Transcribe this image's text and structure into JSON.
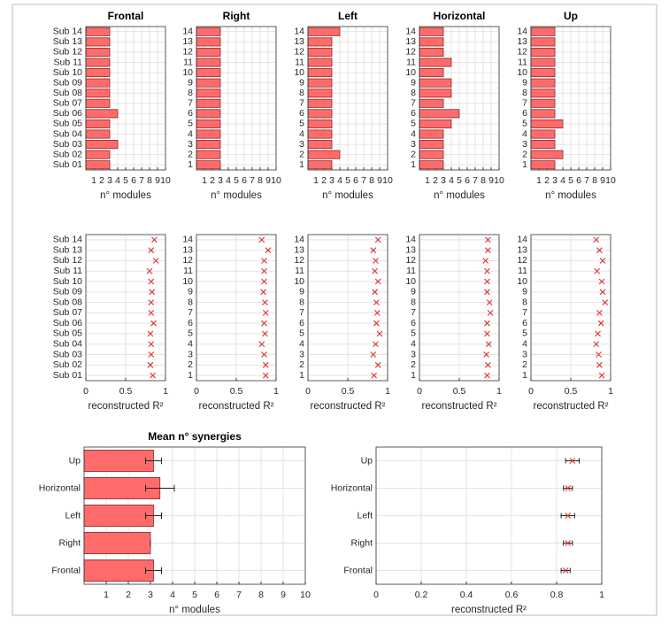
{
  "chart_data": [
    {
      "type": "bar",
      "title": "Frontal",
      "xlabel": "n° modules",
      "categories": [
        "Sub 01",
        "Sub 02",
        "Sub 03",
        "Sub 04",
        "Sub 05",
        "Sub 06",
        "Sub 07",
        "Sub 08",
        "Sub 09",
        "Sub 10",
        "Sub 11",
        "Sub 12",
        "Sub 13",
        "Sub 14"
      ],
      "values": [
        3,
        3,
        4,
        3,
        3,
        4,
        3,
        3,
        3,
        3,
        3,
        3,
        3,
        3
      ],
      "color": "#ff6b6b",
      "xlim": [
        0,
        10
      ],
      "xticks": [
        1,
        2,
        3,
        4,
        5,
        6,
        7,
        8,
        9,
        10
      ],
      "grid": true
    },
    {
      "type": "bar",
      "title": "Right",
      "xlabel": "n° modules",
      "categories": [
        "1",
        "2",
        "3",
        "4",
        "5",
        "6",
        "7",
        "8",
        "9",
        "10",
        "11",
        "12",
        "13",
        "14"
      ],
      "values": [
        3,
        3,
        3,
        3,
        3,
        3,
        3,
        3,
        3,
        3,
        3,
        3,
        3,
        3
      ],
      "color": "#ff6b6b",
      "xlim": [
        0,
        10
      ],
      "xticks": [
        1,
        2,
        3,
        4,
        5,
        6,
        7,
        8,
        9,
        10
      ],
      "grid": true
    },
    {
      "type": "bar",
      "title": "Left",
      "xlabel": "n° modules",
      "categories": [
        "1",
        "2",
        "3",
        "4",
        "5",
        "6",
        "7",
        "8",
        "9",
        "10",
        "11",
        "12",
        "13",
        "14"
      ],
      "values": [
        3,
        4,
        3,
        3,
        3,
        3,
        3,
        3,
        3,
        3,
        3,
        3,
        3,
        4
      ],
      "color": "#ff6b6b",
      "xlim": [
        0,
        10
      ],
      "xticks": [
        1,
        2,
        3,
        4,
        5,
        6,
        7,
        8,
        9,
        10
      ],
      "grid": true
    },
    {
      "type": "bar",
      "title": "Horizontal",
      "xlabel": "n° modules",
      "categories": [
        "1",
        "2",
        "3",
        "4",
        "5",
        "6",
        "7",
        "8",
        "9",
        "10",
        "11",
        "12",
        "13",
        "14"
      ],
      "values": [
        3,
        3,
        3,
        3,
        4,
        5,
        3,
        4,
        4,
        3,
        4,
        3,
        3,
        3
      ],
      "color": "#ff6b6b",
      "xlim": [
        0,
        10
      ],
      "xticks": [
        1,
        2,
        3,
        4,
        5,
        6,
        7,
        8,
        9,
        10
      ],
      "grid": true
    },
    {
      "type": "bar",
      "title": "Up",
      "xlabel": "n° modules",
      "categories": [
        "1",
        "2",
        "3",
        "4",
        "5",
        "6",
        "7",
        "8",
        "9",
        "10",
        "11",
        "12",
        "13",
        "14"
      ],
      "values": [
        3,
        4,
        3,
        3,
        4,
        3,
        3,
        3,
        3,
        3,
        3,
        3,
        3,
        3
      ],
      "color": "#ff6b6b",
      "xlim": [
        0,
        10
      ],
      "xticks": [
        1,
        2,
        3,
        4,
        5,
        6,
        7,
        8,
        9,
        10
      ],
      "grid": true
    },
    {
      "type": "scatter",
      "xlabel": "reconstructed R²",
      "categories": [
        "Sub 01",
        "Sub 02",
        "Sub 03",
        "Sub 04",
        "Sub 05",
        "Sub 06",
        "Sub 07",
        "Sub 08",
        "Sub 09",
        "Sub 10",
        "Sub 11",
        "Sub 12",
        "Sub 13",
        "Sub 14"
      ],
      "values": [
        0.84,
        0.81,
        0.82,
        0.82,
        0.81,
        0.85,
        0.82,
        0.82,
        0.83,
        0.82,
        0.8,
        0.88,
        0.82,
        0.86
      ],
      "color": "#e03030",
      "xlim": [
        0,
        1
      ],
      "xticks": [
        0,
        0.5,
        1
      ],
      "grid": true
    },
    {
      "type": "scatter",
      "xlabel": "reconstructed R²",
      "categories": [
        "1",
        "2",
        "3",
        "4",
        "5",
        "6",
        "7",
        "8",
        "9",
        "10",
        "11",
        "12",
        "13",
        "14"
      ],
      "values": [
        0.87,
        0.87,
        0.85,
        0.82,
        0.86,
        0.85,
        0.87,
        0.86,
        0.84,
        0.85,
        0.85,
        0.85,
        0.9,
        0.82
      ],
      "color": "#e03030",
      "xlim": [
        0,
        1
      ],
      "xticks": [
        0,
        0.5,
        1
      ],
      "grid": true
    },
    {
      "type": "scatter",
      "xlabel": "reconstructed R²",
      "categories": [
        "1",
        "2",
        "3",
        "4",
        "5",
        "6",
        "7",
        "8",
        "9",
        "10",
        "11",
        "12",
        "13",
        "14"
      ],
      "values": [
        0.83,
        0.88,
        0.82,
        0.85,
        0.9,
        0.86,
        0.87,
        0.86,
        0.84,
        0.88,
        0.84,
        0.85,
        0.82,
        0.88
      ],
      "color": "#e03030",
      "xlim": [
        0,
        1
      ],
      "xticks": [
        0,
        0.5,
        1
      ],
      "grid": true
    },
    {
      "type": "scatter",
      "xlabel": "reconstructed R²",
      "categories": [
        "1",
        "2",
        "3",
        "4",
        "5",
        "6",
        "7",
        "8",
        "9",
        "10",
        "11",
        "12",
        "13",
        "14"
      ],
      "values": [
        0.85,
        0.86,
        0.84,
        0.87,
        0.85,
        0.85,
        0.89,
        0.88,
        0.85,
        0.85,
        0.85,
        0.83,
        0.86,
        0.86
      ],
      "color": "#e03030",
      "xlim": [
        0,
        1
      ],
      "xticks": [
        0,
        0.5,
        1
      ],
      "grid": true
    },
    {
      "type": "scatter",
      "xlabel": "reconstructed R²",
      "categories": [
        "1",
        "2",
        "3",
        "4",
        "5",
        "6",
        "7",
        "8",
        "9",
        "10",
        "11",
        "12",
        "13",
        "14"
      ],
      "values": [
        0.89,
        0.86,
        0.85,
        0.82,
        0.84,
        0.88,
        0.86,
        0.93,
        0.9,
        0.89,
        0.83,
        0.9,
        0.86,
        0.82
      ],
      "color": "#e03030",
      "xlim": [
        0,
        1
      ],
      "xticks": [
        0,
        0.5,
        1
      ],
      "grid": true
    },
    {
      "type": "bar",
      "title": "Mean n° synergies",
      "xlabel": "n° modules",
      "categories": [
        "Frontal",
        "Right",
        "Left",
        "Horizontal",
        "Up"
      ],
      "values": [
        3.14,
        3,
        3.14,
        3.43,
        3.14
      ],
      "errors": [
        0.36,
        0,
        0.36,
        0.65,
        0.36
      ],
      "color": "#ff6b6b",
      "xlim": [
        0,
        10
      ],
      "xticks": [
        1,
        2,
        3,
        4,
        5,
        6,
        7,
        8,
        9,
        10
      ],
      "grid": true
    },
    {
      "type": "scatter",
      "xlabel": "reconstructed R²",
      "categories": [
        "Frontal",
        "Right",
        "Left",
        "Horizontal",
        "Up"
      ],
      "values": [
        0.84,
        0.85,
        0.85,
        0.85,
        0.87
      ],
      "errors": [
        0.02,
        0.02,
        0.03,
        0.02,
        0.03
      ],
      "color": "#e03030",
      "xlim": [
        0,
        1
      ],
      "xticks": [
        0,
        0.2,
        0.4,
        0.6,
        0.8,
        1
      ],
      "grid": true
    }
  ]
}
